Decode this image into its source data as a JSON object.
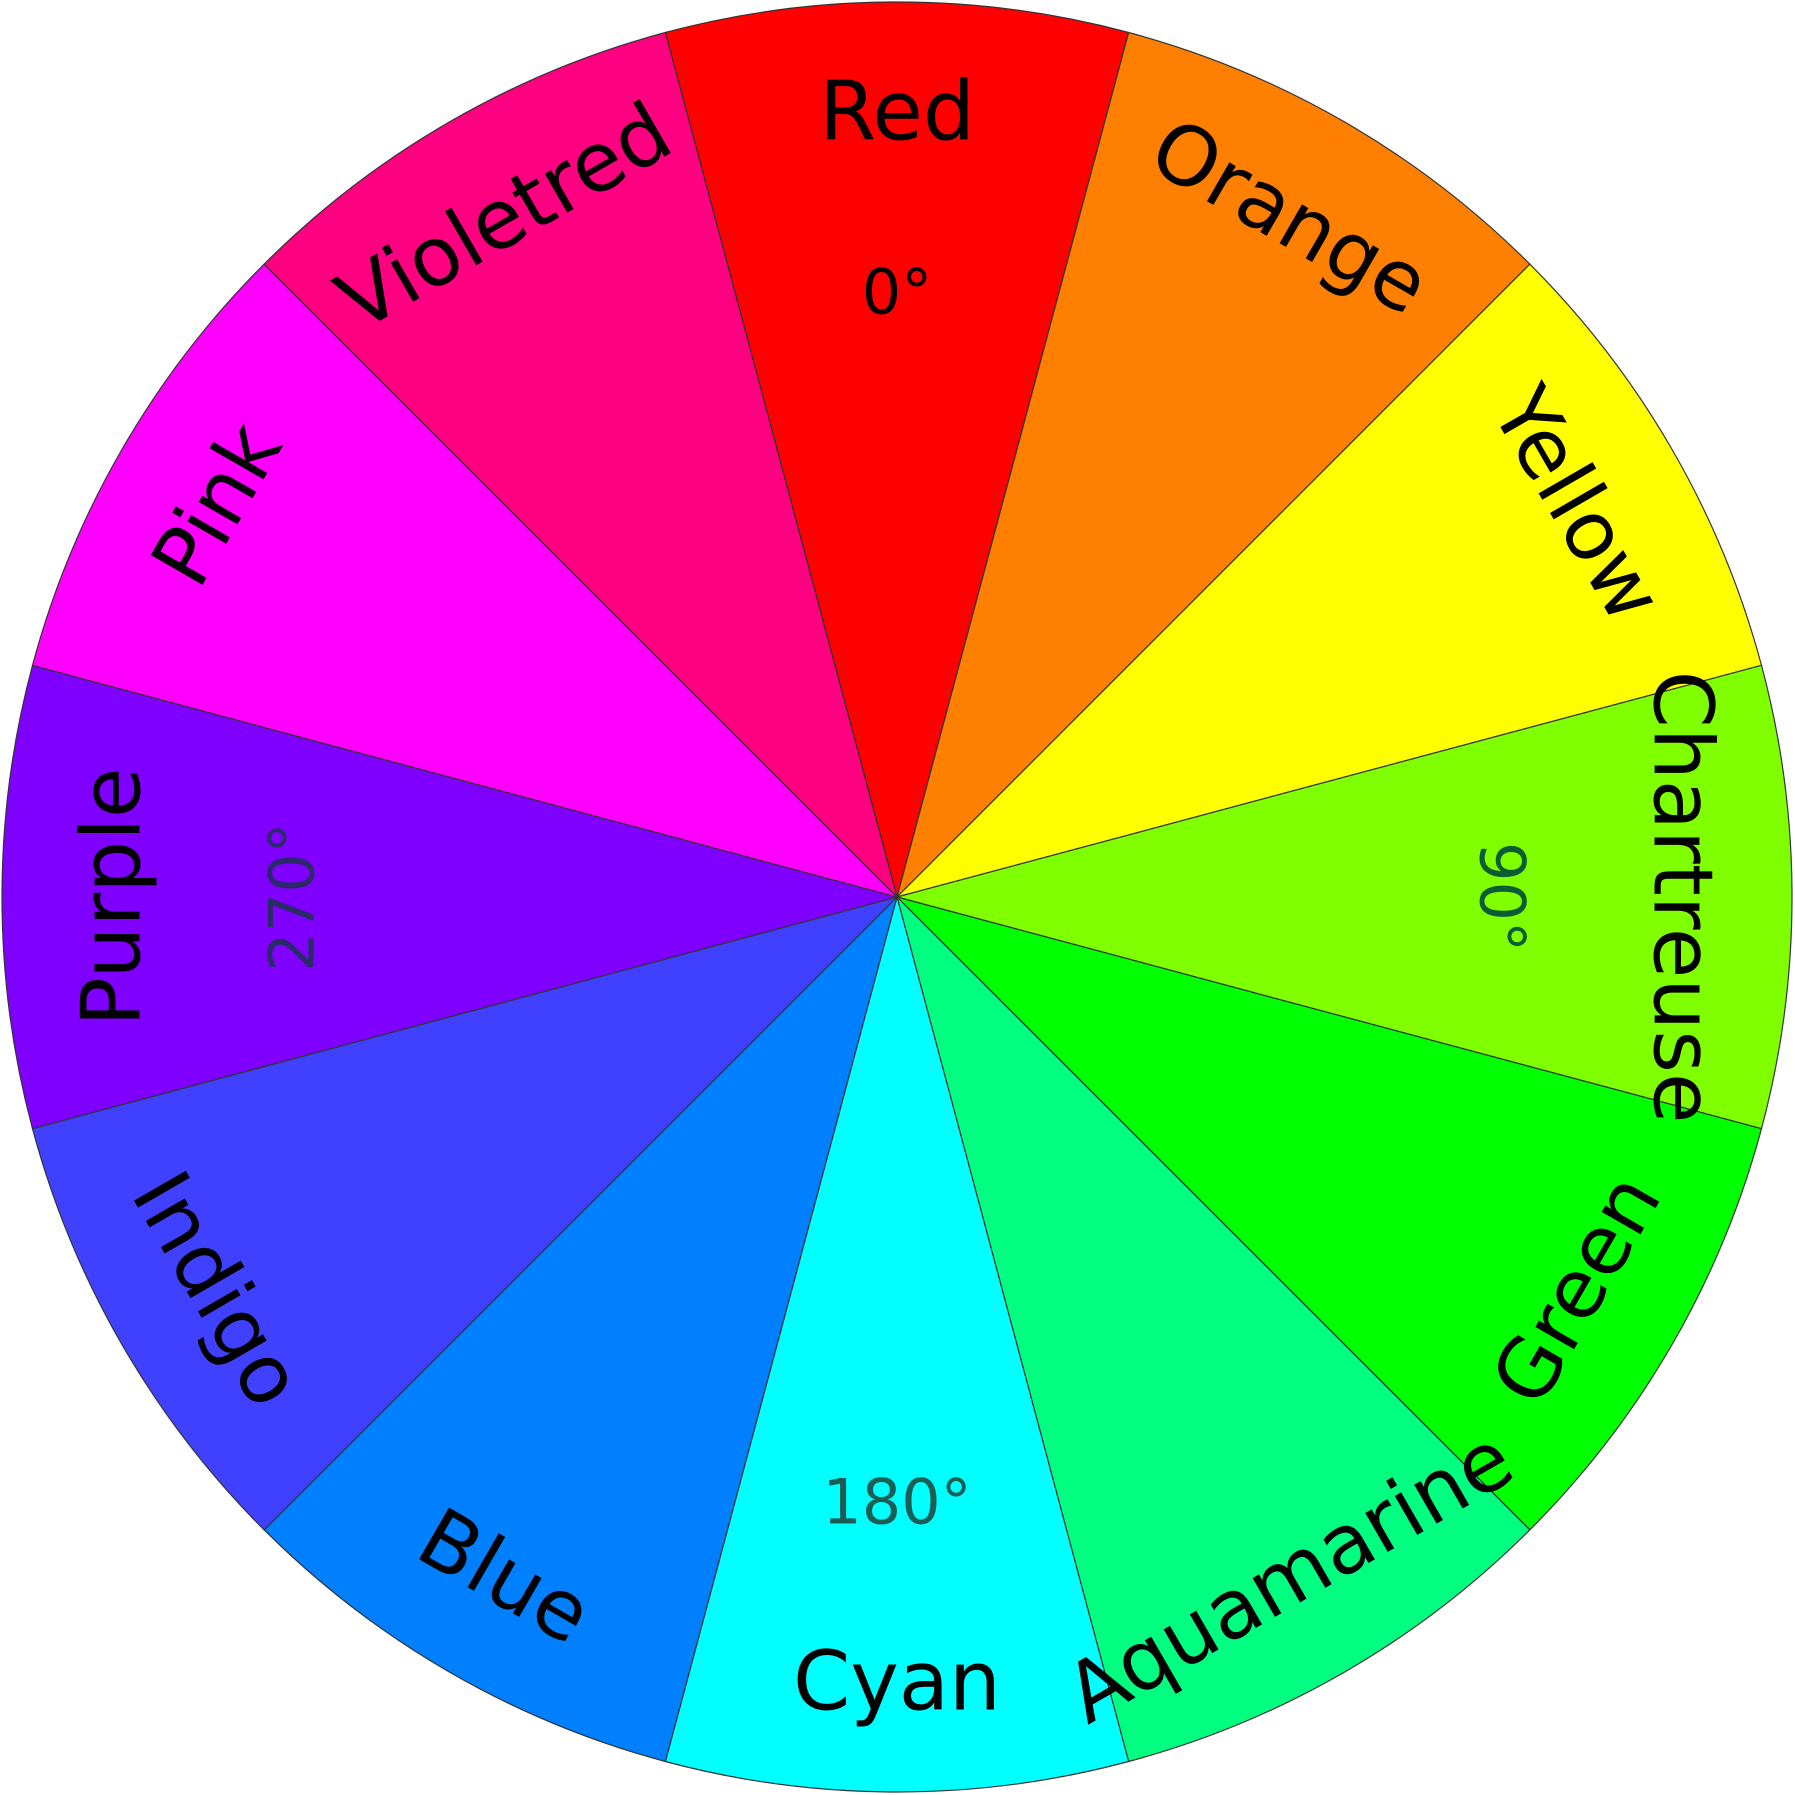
{
  "diagram": {
    "segments": [
      {
        "label": "Red",
        "color": "#ff0000"
      },
      {
        "label": "Orange",
        "color": "#ff8000"
      },
      {
        "label": "Yellow",
        "color": "#ffff00"
      },
      {
        "label": "Chartreuse",
        "color": "#80ff00"
      },
      {
        "label": "Green",
        "color": "#00ff00"
      },
      {
        "label": "Aquamarine",
        "color": "#00ff80"
      },
      {
        "label": "Cyan",
        "color": "#00ffff"
      },
      {
        "label": "Blue",
        "color": "#0080ff"
      },
      {
        "label": "Indigo",
        "color": "#4040ff"
      },
      {
        "label": "Purple",
        "color": "#8000ff"
      },
      {
        "label": "Pink",
        "color": "#ff00ff"
      },
      {
        "label": "Violetred",
        "color": "#ff0080"
      }
    ],
    "angle_marks": [
      {
        "text": "0°",
        "segment": "Red",
        "color": "#000000"
      },
      {
        "text": "90°",
        "segment": "Chartreuse",
        "color": "#0a5c35"
      },
      {
        "text": "180°",
        "segment": "Cyan",
        "color": "#1b5e56"
      },
      {
        "text": "270°",
        "segment": "Purple",
        "color": "#2a2a6a"
      }
    ]
  }
}
